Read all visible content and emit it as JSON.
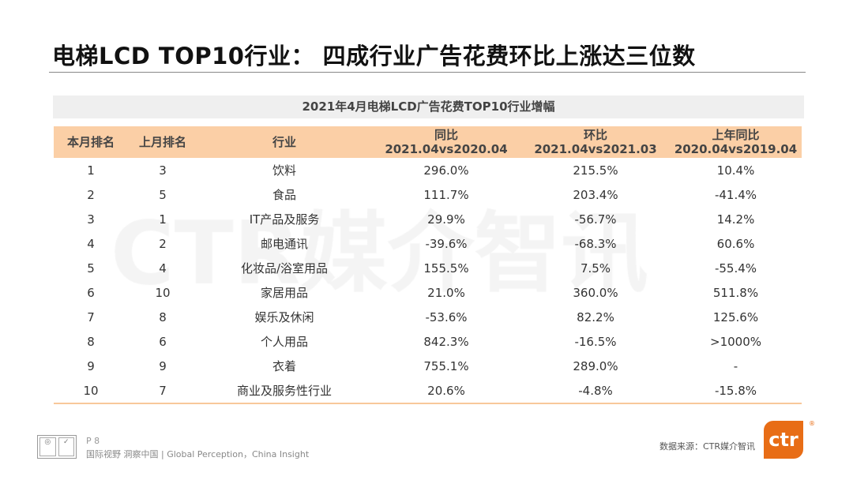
{
  "title": "电梯LCD TOP10行业： 四成行业广告花费环比上涨达三位数",
  "table_title": "2021年4月电梯LCD广告花费TOP10行业增幅",
  "watermark": "CTR媒介智讯",
  "headers": [
    [
      "本月排名",
      ""
    ],
    [
      "上月排名",
      ""
    ],
    [
      "行业",
      ""
    ],
    [
      "同比",
      "2021.04vs2020.04"
    ],
    [
      "环比",
      "2021.04vs2021.03"
    ],
    [
      "上年同比",
      "2020.04vs2019.04"
    ]
  ],
  "rows": [
    [
      "1",
      "3",
      "饮料",
      "296.0%",
      "215.5%",
      "10.4%"
    ],
    [
      "2",
      "5",
      "食品",
      "111.7%",
      "203.4%",
      "-41.4%"
    ],
    [
      "3",
      "1",
      "IT产品及服务",
      "29.9%",
      "-56.7%",
      "14.2%"
    ],
    [
      "4",
      "2",
      "邮电通讯",
      "-39.6%",
      "-68.3%",
      "60.6%"
    ],
    [
      "5",
      "4",
      "化妆品/浴室用品",
      "155.5%",
      "7.5%",
      "-55.4%"
    ],
    [
      "6",
      "10",
      "家居用品",
      "21.0%",
      "360.0%",
      "511.8%"
    ],
    [
      "7",
      "8",
      "娱乐及休闲",
      "-53.6%",
      "82.2%",
      "125.6%"
    ],
    [
      "8",
      "6",
      "个人用品",
      "842.3%",
      "-16.5%",
      ">1000%"
    ],
    [
      "9",
      "9",
      "衣着",
      "755.1%",
      "289.0%",
      "-"
    ],
    [
      "10",
      "7",
      "商业及服务性行业",
      "20.6%",
      "-4.8%",
      "-15.8%"
    ]
  ],
  "footer": {
    "page": "P 8",
    "slogan": "国际视野  洞察中国 | Global Perception，China Insight",
    "source": "数据来源：CTR媒介智讯",
    "logo": "ctr",
    "reg": "®"
  },
  "colors": {
    "header_bg": "#fbcfa6",
    "brand": "#e86d16"
  }
}
